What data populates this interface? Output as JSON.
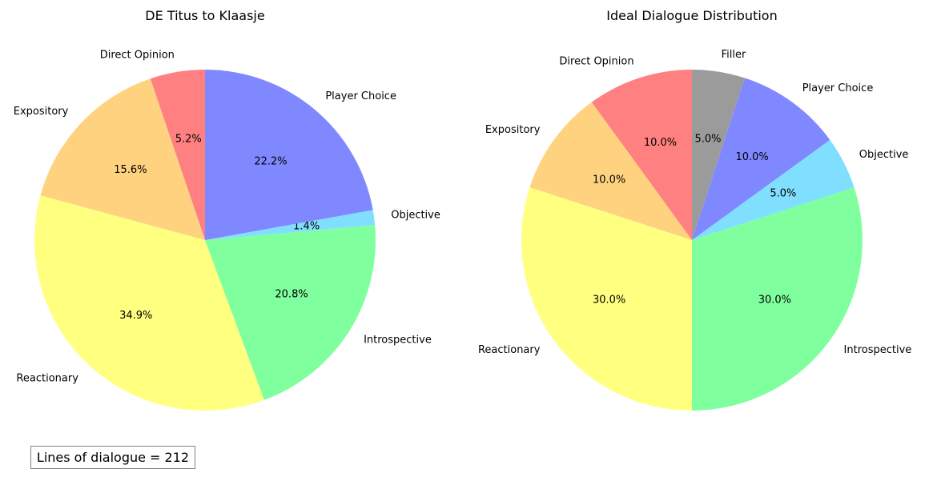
{
  "chart_data": [
    {
      "type": "pie",
      "title": "DE Titus to Klaasje",
      "slices": [
        {
          "label": "Direct Opinion",
          "value": 5.2,
          "color": "#ff8080"
        },
        {
          "label": "Expository",
          "value": 15.6,
          "color": "#ffd280"
        },
        {
          "label": "Reactionary",
          "value": 34.9,
          "color": "#ffff80"
        },
        {
          "label": "Introspective",
          "value": 20.8,
          "color": "#80ff9f"
        },
        {
          "label": "Objective",
          "value": 1.4,
          "color": "#80dfff"
        },
        {
          "label": "Player Choice",
          "value": 22.2,
          "color": "#8088ff"
        }
      ],
      "start_angle_deg": 90,
      "direction": "counterclockwise",
      "value_format": "percent, 1 decimal"
    },
    {
      "type": "pie",
      "title": "Ideal Dialogue Distribution",
      "slices": [
        {
          "label": "Direct Opinion",
          "value": 10.0,
          "color": "#ff8080"
        },
        {
          "label": "Expository",
          "value": 10.0,
          "color": "#ffd280"
        },
        {
          "label": "Reactionary",
          "value": 30.0,
          "color": "#ffff80"
        },
        {
          "label": "Introspective",
          "value": 30.0,
          "color": "#80ff9f"
        },
        {
          "label": "Objective",
          "value": 5.0,
          "color": "#80dfff"
        },
        {
          "label": "Player Choice",
          "value": 10.0,
          "color": "#8088ff"
        },
        {
          "label": "Filler",
          "value": 5.0,
          "color": "#9b9b9b"
        }
      ],
      "start_angle_deg": 90,
      "direction": "counterclockwise",
      "value_format": "percent, 1 decimal"
    }
  ],
  "annotation": {
    "text": "Lines of dialogue = 212"
  }
}
